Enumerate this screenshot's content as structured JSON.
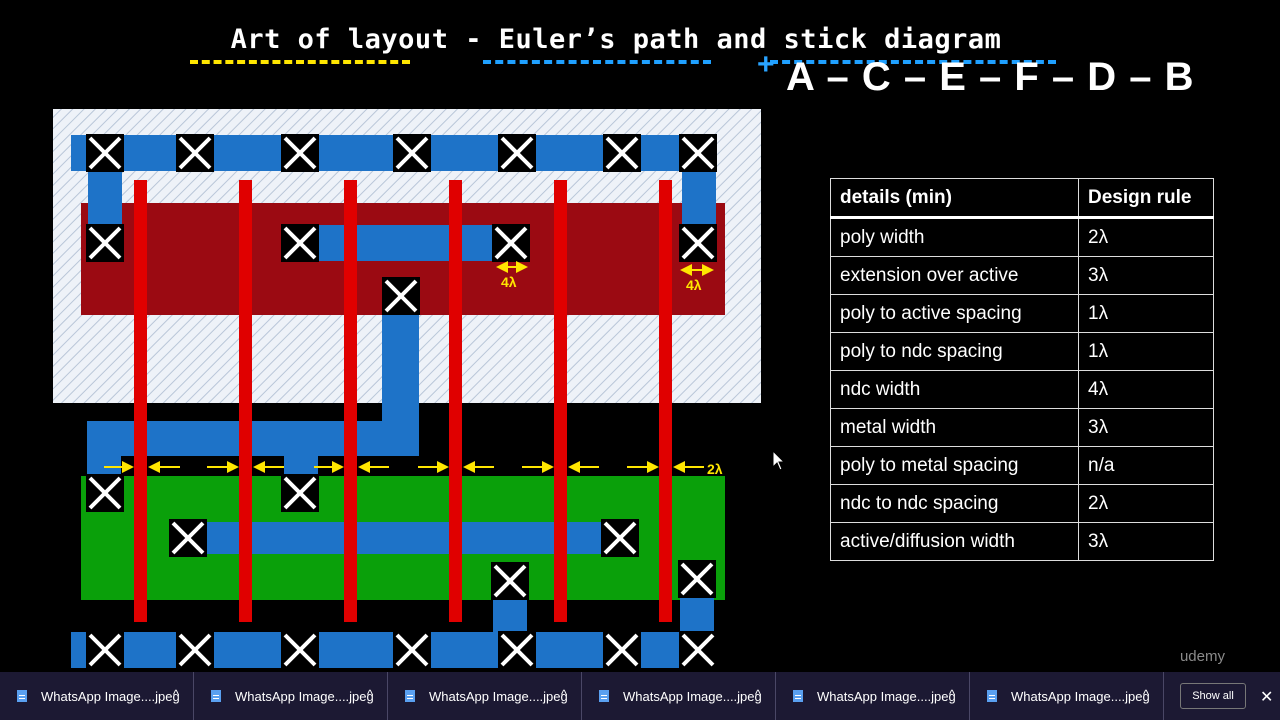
{
  "slide": {
    "title": "Art of layout - Euler’s path and stick diagram",
    "euler_path": "A – C – E – F – D – B",
    "euler_plus": "+",
    "watermark": "udemy"
  },
  "layout_labels": {
    "lambda_4a": "4λ",
    "lambda_4b": "4λ",
    "lambda_2": "2λ"
  },
  "rules_table": {
    "headers": [
      "details (min)",
      "Design rule"
    ],
    "rows": [
      [
        "poly width",
        "2λ"
      ],
      [
        "extension over active",
        "3λ"
      ],
      [
        "poly to active spacing",
        "1λ"
      ],
      [
        "poly to ndc spacing",
        "1λ"
      ],
      [
        "ndc width",
        "4λ"
      ],
      [
        "metal width",
        "3λ"
      ],
      [
        "poly to metal spacing",
        "n/a"
      ],
      [
        "ndc to ndc spacing",
        "2λ"
      ],
      [
        "active/diffusion width",
        "3λ"
      ]
    ]
  },
  "taskbar": {
    "downloads": [
      {
        "label": "WhatsApp Image....jpeg"
      },
      {
        "label": "WhatsApp Image....jpeg"
      },
      {
        "label": "WhatsApp Image....jpeg"
      },
      {
        "label": "WhatsApp Image....jpeg"
      },
      {
        "label": "WhatsApp Image....jpeg"
      },
      {
        "label": "WhatsApp Image....jpeg"
      }
    ],
    "show_all": "Show all",
    "close": "✕"
  },
  "colors": {
    "well_hatch": "#dfe6f0",
    "p_active": "#9b0a12",
    "n_active": "#0aa00a",
    "poly": "#e00000",
    "metal": "#1e73c8",
    "contact": "#000000",
    "annotation": "#ffe600",
    "title_underline_yellow": "#ffe600",
    "title_underline_blue": "#1fa0ff"
  }
}
